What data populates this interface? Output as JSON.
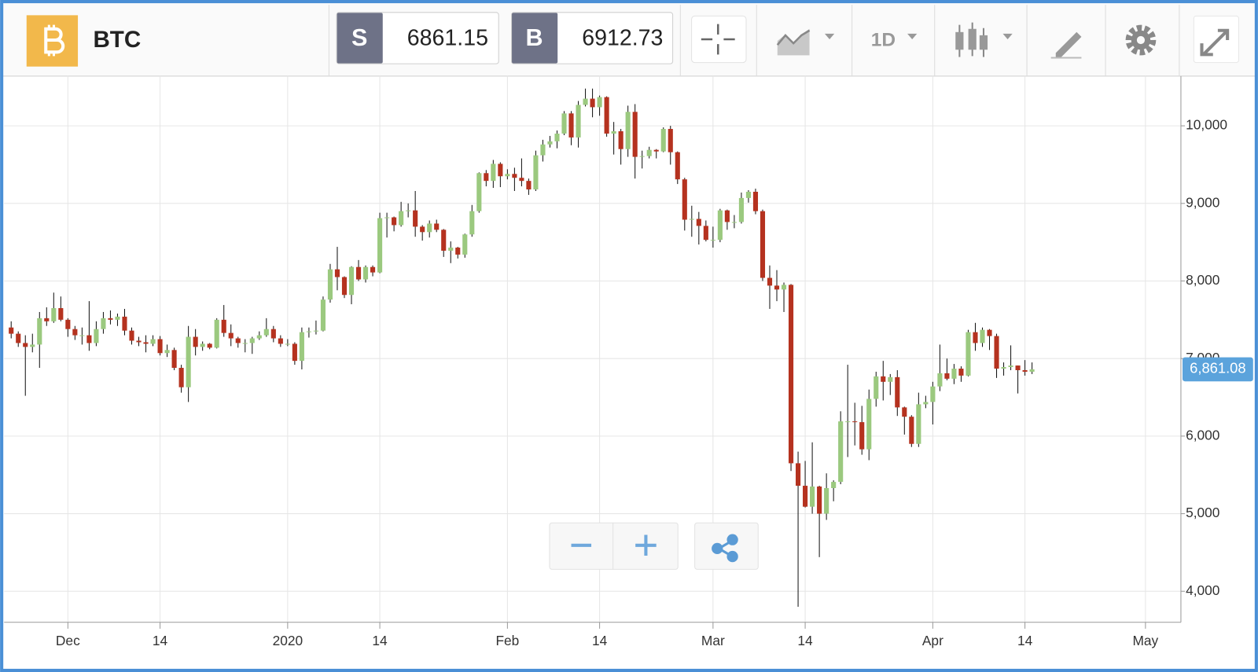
{
  "header": {
    "symbol": "BTC",
    "sell_label": "S",
    "sell_price": "6861.15",
    "buy_label": "B",
    "buy_price": "6912.73",
    "interval": "1D"
  },
  "chart_data": {
    "type": "candlestick",
    "up_color": "#9bc97f",
    "down_color": "#b5321f",
    "wick_color": "#111111",
    "grid": true,
    "last_price": {
      "value": 6861.08,
      "label": "6,861.08"
    },
    "last_price_color": "#5ba3dc",
    "xlim": [
      "2019-11-22",
      "2020-05-06"
    ],
    "xticks": [
      {
        "value": "2019-12-01",
        "label": "Dec"
      },
      {
        "value": "2019-12-14",
        "label": "14"
      },
      {
        "value": "2020-01-01",
        "label": "2020"
      },
      {
        "value": "2020-01-14",
        "label": "14"
      },
      {
        "value": "2020-02-01",
        "label": "Feb"
      },
      {
        "value": "2020-02-14",
        "label": "14"
      },
      {
        "value": "2020-03-01",
        "label": "Mar"
      },
      {
        "value": "2020-03-14",
        "label": "14"
      },
      {
        "value": "2020-04-01",
        "label": "Apr"
      },
      {
        "value": "2020-04-14",
        "label": "14"
      },
      {
        "value": "2020-05-01",
        "label": "May"
      }
    ],
    "ylim": [
      3600,
      10640
    ],
    "yticks": [
      {
        "value": 4000,
        "label": "4,000"
      },
      {
        "value": 5000,
        "label": "5,000"
      },
      {
        "value": 6000,
        "label": "6,000"
      },
      {
        "value": 7000,
        "label": "7,000"
      },
      {
        "value": 8000,
        "label": "8,000"
      },
      {
        "value": 9000,
        "label": "9,000"
      },
      {
        "value": 10000,
        "label": "10,000"
      }
    ],
    "x": [
      "2019-11-23",
      "2019-11-24",
      "2019-11-25",
      "2019-11-26",
      "2019-11-27",
      "2019-11-28",
      "2019-11-29",
      "2019-11-30",
      "2019-12-01",
      "2019-12-02",
      "2019-12-03",
      "2019-12-04",
      "2019-12-05",
      "2019-12-06",
      "2019-12-07",
      "2019-12-08",
      "2019-12-09",
      "2019-12-10",
      "2019-12-11",
      "2019-12-12",
      "2019-12-13",
      "2019-12-14",
      "2019-12-15",
      "2019-12-16",
      "2019-12-17",
      "2019-12-18",
      "2019-12-19",
      "2019-12-20",
      "2019-12-21",
      "2019-12-22",
      "2019-12-23",
      "2019-12-24",
      "2019-12-25",
      "2019-12-26",
      "2019-12-27",
      "2019-12-28",
      "2019-12-29",
      "2019-12-30",
      "2019-12-31",
      "2020-01-01",
      "2020-01-02",
      "2020-01-03",
      "2020-01-04",
      "2020-01-05",
      "2020-01-06",
      "2020-01-07",
      "2020-01-08",
      "2020-01-09",
      "2020-01-10",
      "2020-01-11",
      "2020-01-12",
      "2020-01-13",
      "2020-01-14",
      "2020-01-15",
      "2020-01-16",
      "2020-01-17",
      "2020-01-18",
      "2020-01-19",
      "2020-01-20",
      "2020-01-21",
      "2020-01-22",
      "2020-01-23",
      "2020-01-24",
      "2020-01-25",
      "2020-01-26",
      "2020-01-27",
      "2020-01-28",
      "2020-01-29",
      "2020-01-30",
      "2020-01-31",
      "2020-02-01",
      "2020-02-02",
      "2020-02-03",
      "2020-02-04",
      "2020-02-05",
      "2020-02-06",
      "2020-02-07",
      "2020-02-08",
      "2020-02-09",
      "2020-02-10",
      "2020-02-11",
      "2020-02-12",
      "2020-02-13",
      "2020-02-14",
      "2020-02-15",
      "2020-02-16",
      "2020-02-17",
      "2020-02-18",
      "2020-02-19",
      "2020-02-20",
      "2020-02-21",
      "2020-02-22",
      "2020-02-23",
      "2020-02-24",
      "2020-02-25",
      "2020-02-26",
      "2020-02-27",
      "2020-02-28",
      "2020-02-29",
      "2020-03-01",
      "2020-03-02",
      "2020-03-03",
      "2020-03-04",
      "2020-03-05",
      "2020-03-06",
      "2020-03-07",
      "2020-03-08",
      "2020-03-09",
      "2020-03-10",
      "2020-03-11",
      "2020-03-12",
      "2020-03-13",
      "2020-03-14",
      "2020-03-15",
      "2020-03-16",
      "2020-03-17",
      "2020-03-18",
      "2020-03-19",
      "2020-03-20",
      "2020-03-21",
      "2020-03-22",
      "2020-03-23",
      "2020-03-24",
      "2020-03-25",
      "2020-03-26",
      "2020-03-27",
      "2020-03-28",
      "2020-03-29",
      "2020-03-30",
      "2020-03-31",
      "2020-04-01",
      "2020-04-02",
      "2020-04-03",
      "2020-04-04",
      "2020-04-05",
      "2020-04-06",
      "2020-04-07",
      "2020-04-08",
      "2020-04-09",
      "2020-04-10",
      "2020-04-11",
      "2020-04-12",
      "2020-04-13",
      "2020-04-14",
      "2020-04-15"
    ],
    "open": [
      7400,
      7320,
      7200,
      7150,
      7180,
      7520,
      7480,
      7650,
      7500,
      7380,
      7300,
      7300,
      7200,
      7380,
      7520,
      7500,
      7540,
      7360,
      7230,
      7210,
      7190,
      7250,
      7070,
      7110,
      6880,
      6630,
      7280,
      7150,
      7190,
      7140,
      7500,
      7330,
      7260,
      7200,
      7200,
      7260,
      7300,
      7380,
      7260,
      7190,
      7190,
      6970,
      7340,
      7350,
      7360,
      7760,
      8150,
      8050,
      7820,
      8180,
      8020,
      8180,
      8110,
      8810,
      8820,
      8720,
      8900,
      8910,
      8700,
      8630,
      8740,
      8660,
      8390,
      8430,
      8340,
      8600,
      8900,
      9390,
      9290,
      9510,
      9350,
      9380,
      9330,
      9290,
      9180,
      9620,
      9760,
      9800,
      9900,
      10160,
      9850,
      10270,
      10350,
      10240,
      10370,
      9900,
      9930,
      9700,
      10180,
      9600,
      9610,
      9690,
      9670,
      9960,
      9660,
      9310,
      8790,
      8800,
      8710,
      8530,
      8530,
      8910,
      8760,
      8760,
      9070,
      9150,
      8900,
      8040,
      7940,
      7890,
      7950,
      5650,
      5360,
      5090,
      5350,
      5000,
      5330,
      5410,
      6190,
      6190,
      6180,
      5830,
      6480,
      6770,
      6700,
      6760,
      6370,
      6250,
      5900,
      6410,
      6440,
      6640,
      6810,
      6740,
      6870,
      6780,
      7340,
      7200,
      7370,
      7290,
      6870,
      6890,
      6910,
      6850,
      6830
    ],
    "high": [
      7480,
      7350,
      7300,
      7320,
      7600,
      7660,
      7850,
      7800,
      7520,
      7420,
      7400,
      7740,
      7480,
      7600,
      7620,
      7580,
      7640,
      7400,
      7280,
      7300,
      7300,
      7290,
      7180,
      7140,
      6920,
      7420,
      7380,
      7220,
      7200,
      7520,
      7690,
      7440,
      7280,
      7250,
      7280,
      7350,
      7520,
      7420,
      7300,
      7250,
      7210,
      7400,
      7400,
      7490,
      7800,
      8220,
      8440,
      8060,
      8190,
      8270,
      8200,
      8200,
      8880,
      8880,
      8830,
      9020,
      9000,
      9160,
      8720,
      8780,
      8790,
      8670,
      8510,
      8440,
      8610,
      8980,
      9400,
      9430,
      9560,
      9530,
      9440,
      9460,
      9580,
      9320,
      9680,
      9820,
      9870,
      9940,
      10190,
      10190,
      10320,
      10480,
      10480,
      10390,
      10380,
      10050,
      9960,
      10260,
      10280,
      9680,
      9730,
      9700,
      9980,
      10000,
      9670,
      9330,
      8970,
      8890,
      8780,
      8700,
      8930,
      8920,
      8850,
      9140,
      9170,
      9190,
      8920,
      8200,
      8140,
      7980,
      7960,
      5800,
      5680,
      5920,
      5360,
      5520,
      5430,
      6320,
      6920,
      6430,
      6390,
      6600,
      6830,
      6970,
      6800,
      6850,
      6380,
      6270,
      6560,
      6520,
      6700,
      7180,
      7000,
      6930,
      6900,
      7370,
      7460,
      7400,
      7380,
      7320,
      6950,
      7170,
      6910,
      6980,
      6950
    ],
    "low": [
      7260,
      7150,
      6520,
      7080,
      6880,
      7420,
      7460,
      7480,
      7280,
      7240,
      7180,
      7100,
      7160,
      7320,
      7440,
      7420,
      7300,
      7180,
      7160,
      7080,
      7160,
      7040,
      7020,
      6850,
      6560,
      6440,
      7040,
      7100,
      7120,
      7130,
      7280,
      7160,
      7140,
      7080,
      7060,
      7240,
      7280,
      7210,
      7150,
      7160,
      6920,
      6860,
      7270,
      7310,
      7350,
      7720,
      7880,
      7780,
      7700,
      8000,
      7980,
      8060,
      8100,
      8560,
      8640,
      8700,
      8820,
      8570,
      8520,
      8560,
      8630,
      8310,
      8230,
      8290,
      8300,
      8570,
      8880,
      9220,
      9200,
      9210,
      9310,
      9160,
      9220,
      9110,
      9160,
      9540,
      9720,
      9710,
      9880,
      9750,
      9720,
      10250,
      10110,
      10130,
      9860,
      9630,
      9500,
      9600,
      9320,
      9450,
      9580,
      9580,
      9660,
      9500,
      9250,
      8650,
      8570,
      8470,
      8510,
      8430,
      8500,
      8660,
      8680,
      8740,
      9010,
      8860,
      8000,
      7640,
      7740,
      7600,
      5550,
      3800,
      5080,
      5000,
      4440,
      4920,
      5160,
      5380,
      5730,
      5880,
      5760,
      5690,
      6380,
      6460,
      6530,
      6260,
      6020,
      5860,
      5860,
      6360,
      6150,
      6580,
      6720,
      6670,
      6700,
      6770,
      7100,
      7150,
      7110,
      6750,
      6780,
      6850,
      6550,
      6780,
      6800
    ],
    "close": [
      7320,
      7200,
      7150,
      7180,
      7520,
      7480,
      7650,
      7500,
      7380,
      7300,
      7300,
      7200,
      7380,
      7520,
      7500,
      7540,
      7360,
      7230,
      7210,
      7190,
      7250,
      7070,
      7110,
      6880,
      6630,
      7280,
      7150,
      7190,
      7140,
      7500,
      7330,
      7260,
      7200,
      7200,
      7260,
      7300,
      7380,
      7260,
      7190,
      7190,
      6970,
      7340,
      7350,
      7360,
      7760,
      8150,
      8050,
      7820,
      8180,
      8020,
      8180,
      8110,
      8810,
      8820,
      8720,
      8900,
      8910,
      8700,
      8630,
      8740,
      8660,
      8390,
      8430,
      8340,
      8600,
      8900,
      9390,
      9290,
      9510,
      9350,
      9380,
      9330,
      9290,
      9180,
      9620,
      9760,
      9800,
      9900,
      10160,
      9850,
      10270,
      10350,
      10240,
      10370,
      9900,
      9930,
      9700,
      10180,
      9600,
      9610,
      9690,
      9670,
      9960,
      9660,
      9310,
      8790,
      8800,
      8710,
      8530,
      8530,
      8910,
      8760,
      8760,
      9070,
      9150,
      8900,
      8040,
      7940,
      7890,
      7950,
      5650,
      5360,
      5090,
      5350,
      5000,
      5330,
      5410,
      6190,
      6190,
      6180,
      5830,
      6480,
      6770,
      6700,
      6760,
      6370,
      6250,
      5900,
      6410,
      6440,
      6640,
      6810,
      6740,
      6870,
      6780,
      7340,
      7200,
      7370,
      7290,
      6870,
      6890,
      6910,
      6850,
      6830,
      6861.08
    ]
  }
}
